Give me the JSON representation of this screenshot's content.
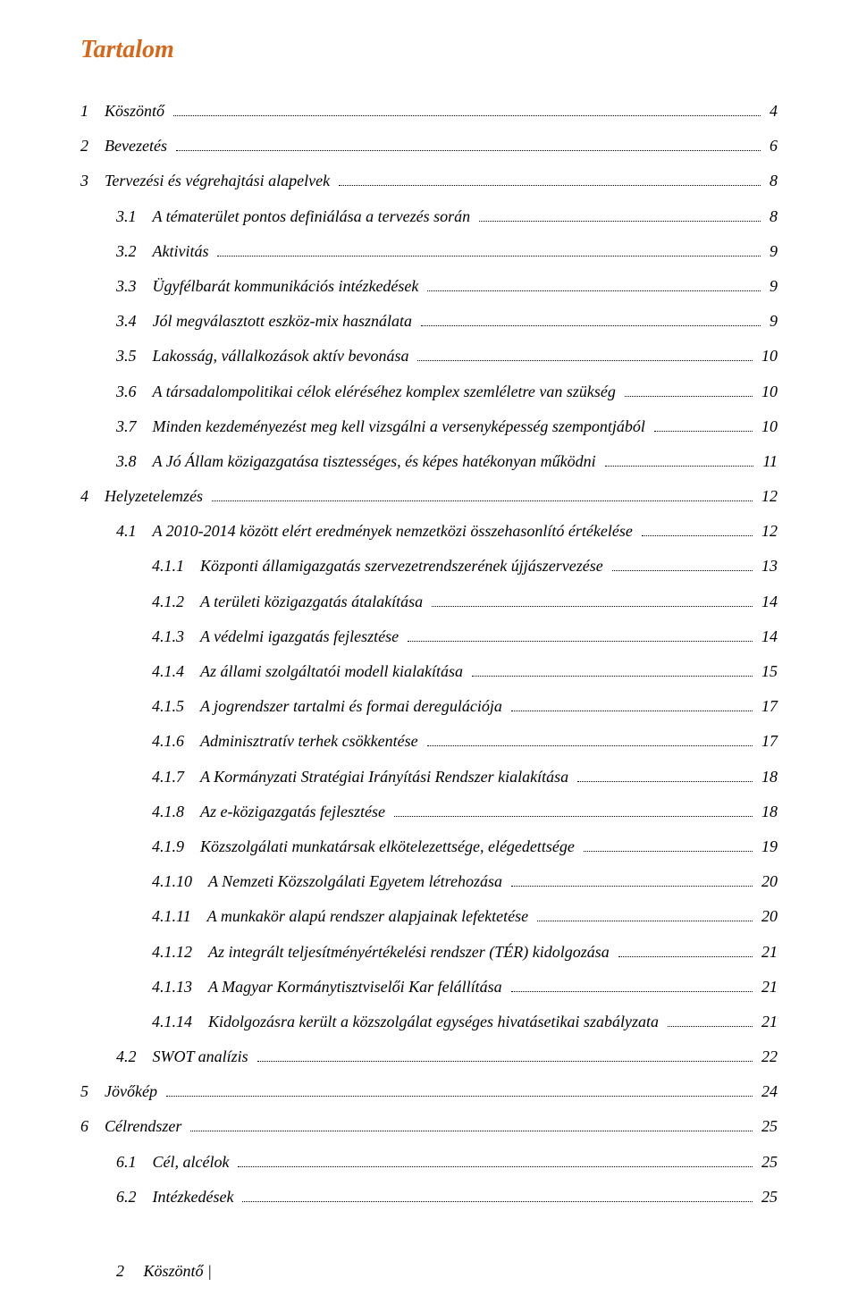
{
  "title": "Tartalom",
  "title_color": "#d2691e",
  "footer": {
    "page": "2",
    "separator": "  Köszöntő |"
  },
  "toc": [
    {
      "level": 1,
      "num": "1",
      "label": "Köszöntő",
      "page": "4"
    },
    {
      "level": 1,
      "num": "2",
      "label": "Bevezetés",
      "page": "6"
    },
    {
      "level": 1,
      "num": "3",
      "label": "Tervezési és végrehajtási alapelvek",
      "page": "8"
    },
    {
      "level": 2,
      "num": "3.1",
      "label": "A tématerület pontos definiálása a tervezés során",
      "page": "8"
    },
    {
      "level": 2,
      "num": "3.2",
      "label": "Aktivitás",
      "page": "9"
    },
    {
      "level": 2,
      "num": "3.3",
      "label": "Ügyfélbarát kommunikációs intézkedések",
      "page": "9"
    },
    {
      "level": 2,
      "num": "3.4",
      "label": "Jól megválasztott eszköz-mix használata",
      "page": "9"
    },
    {
      "level": 2,
      "num": "3.5",
      "label": "Lakosság, vállalkozások aktív bevonása",
      "page": "10"
    },
    {
      "level": 2,
      "num": "3.6",
      "label": "A társadalompolitikai célok eléréséhez komplex szemléletre van szükség",
      "page": "10"
    },
    {
      "level": 2,
      "num": "3.7",
      "label": "Minden kezdeményezést meg kell vizsgálni a versenyképesség szempontjából",
      "page": "10"
    },
    {
      "level": 2,
      "num": "3.8",
      "label": "A Jó Állam közigazgatása tisztességes, és képes hatékonyan működni",
      "page": "11"
    },
    {
      "level": 1,
      "num": "4",
      "label": "Helyzetelemzés",
      "page": "12"
    },
    {
      "level": 2,
      "num": "4.1",
      "label": "A 2010-2014 között elért eredmények nemzetközi összehasonlító értékelése",
      "page": "12"
    },
    {
      "level": 3,
      "num": "4.1.1",
      "label": "Központi államigazgatás szervezetrendszerének újjászervezése",
      "page": "13"
    },
    {
      "level": 3,
      "num": "4.1.2",
      "label": "A területi közigazgatás átalakítása",
      "page": "14"
    },
    {
      "level": 3,
      "num": "4.1.3",
      "label": "A védelmi igazgatás fejlesztése",
      "page": "14"
    },
    {
      "level": 3,
      "num": "4.1.4",
      "label": "Az állami szolgáltatói modell kialakítása",
      "page": "15"
    },
    {
      "level": 3,
      "num": "4.1.5",
      "label": "A jogrendszer tartalmi és formai deregulációja",
      "page": "17"
    },
    {
      "level": 3,
      "num": "4.1.6",
      "label": "Adminisztratív terhek csökkentése",
      "page": "17"
    },
    {
      "level": 3,
      "num": "4.1.7",
      "label": "A Kormányzati Stratégiai Irányítási Rendszer kialakítása",
      "page": "18"
    },
    {
      "level": 3,
      "num": "4.1.8",
      "label": "Az e-közigazgatás fejlesztése",
      "page": "18"
    },
    {
      "level": 3,
      "num": "4.1.9",
      "label": "Közszolgálati munkatársak elkötelezettsége, elégedettsége",
      "page": "19"
    },
    {
      "level": 3,
      "num": "4.1.10",
      "label": "A Nemzeti Közszolgálati Egyetem létrehozása",
      "page": "20"
    },
    {
      "level": 3,
      "num": "4.1.11",
      "label": "A munkakör alapú rendszer alapjainak lefektetése",
      "page": "20"
    },
    {
      "level": 3,
      "num": "4.1.12",
      "label": "Az integrált teljesítményértékelési rendszer (TÉR) kidolgozása",
      "page": "21"
    },
    {
      "level": 3,
      "num": "4.1.13",
      "label": "A Magyar Kormánytisztviselői Kar felállítása",
      "page": "21"
    },
    {
      "level": 3,
      "num": "4.1.14",
      "label": "Kidolgozásra került a közszolgálat egységes hivatásetikai szabályzata",
      "page": "21"
    },
    {
      "level": 2,
      "num": "4.2",
      "label": "SWOT analízis",
      "page": "22"
    },
    {
      "level": 1,
      "num": "5",
      "label": "Jövőkép",
      "page": "24"
    },
    {
      "level": 1,
      "num": "6",
      "label": "Célrendszer",
      "page": "25"
    },
    {
      "level": 2,
      "num": "6.1",
      "label": "Cél, alcélok",
      "page": "25"
    },
    {
      "level": 2,
      "num": "6.2",
      "label": "Intézkedések",
      "page": "25"
    }
  ]
}
